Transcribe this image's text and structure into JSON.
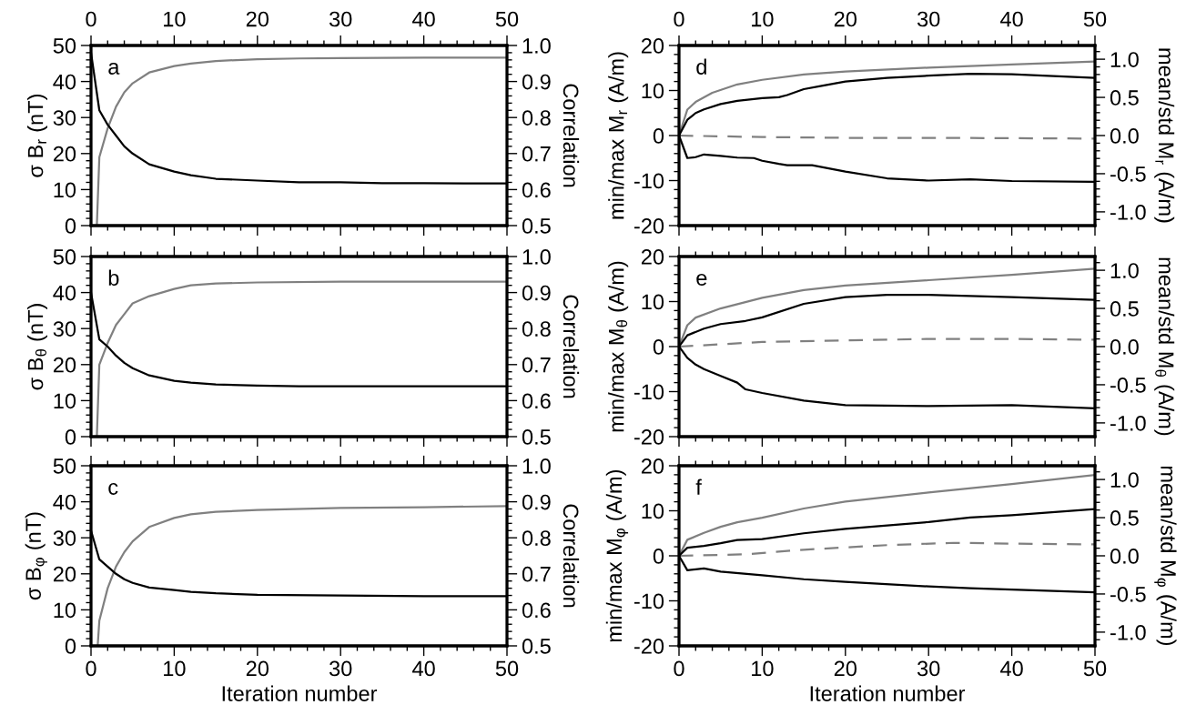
{
  "chart_data": [
    {
      "type": "line",
      "ylabel": "σ B$_{r}$ (nT)",
      "y2label": "Correlation",
      "annotations": [
        "a"
      ],
      "xlim": [
        0,
        50
      ],
      "xticks": [
        0,
        10,
        20,
        30,
        40,
        50
      ],
      "ylim": [
        0,
        50
      ],
      "yticks": [
        0,
        10,
        20,
        30,
        40,
        50
      ],
      "y2lim": [
        0.5,
        1.0
      ],
      "y2ticks": [
        {
          "value": 0.5,
          "label": "0.5"
        },
        {
          "value": 0.6,
          "label": "0.6"
        },
        {
          "value": 0.7,
          "label": "0.7"
        },
        {
          "value": 0.8,
          "label": "0.8"
        },
        {
          "value": 0.9,
          "label": "0.9"
        },
        {
          "value": 1.0,
          "label": "1.0"
        }
      ],
      "legend": false,
      "series": [
        {
          "color": "#000000",
          "x": [
            0,
            1,
            2,
            3,
            4,
            5,
            7,
            10,
            12,
            15,
            20,
            25,
            30,
            35,
            40,
            45,
            50
          ],
          "values": [
            48,
            32,
            28,
            25,
            22,
            20,
            17,
            15,
            14,
            13,
            12.5,
            12,
            12,
            11.8,
            11.8,
            11.7,
            11.7
          ]
        },
        {
          "color": "#808080",
          "axis": "y2",
          "x": [
            0.7,
            1,
            2,
            3,
            4,
            5,
            7,
            10,
            12,
            15,
            20,
            25,
            30,
            40,
            50
          ],
          "values": [
            0.5,
            0.69,
            0.77,
            0.83,
            0.87,
            0.895,
            0.925,
            0.943,
            0.95,
            0.957,
            0.962,
            0.964,
            0.965,
            0.966,
            0.966
          ]
        }
      ]
    },
    {
      "type": "line",
      "ylabel": "σ B$_{θ}$ (nT)",
      "y2label": "Correlation",
      "annotations": [
        "b"
      ],
      "xlim": [
        0,
        50
      ],
      "tick_labels": "y",
      "ylim": [
        0,
        50
      ],
      "yticks": [
        0,
        10,
        20,
        30,
        40,
        50
      ],
      "y2lim": [
        0.5,
        1.0
      ],
      "y2ticks": [
        {
          "value": 0.5,
          "label": "0.5"
        },
        {
          "value": 0.6,
          "label": "0.6"
        },
        {
          "value": 0.7,
          "label": "0.7"
        },
        {
          "value": 0.8,
          "label": "0.8"
        },
        {
          "value": 0.9,
          "label": "0.9"
        },
        {
          "value": 1.0,
          "label": "1.0"
        }
      ],
      "grid": false,
      "legend": false,
      "series": [
        {
          "color": "#000000",
          "x": [
            0,
            1,
            2,
            3,
            4,
            5,
            7,
            10,
            12,
            15,
            20,
            25,
            30,
            40,
            50
          ],
          "values": [
            40,
            27,
            25,
            22.5,
            20.5,
            19,
            17,
            15.5,
            15,
            14.5,
            14.2,
            14,
            14,
            14,
            14
          ]
        },
        {
          "color": "#808080",
          "axis": "y2",
          "x": [
            0.7,
            1,
            2,
            3,
            4,
            5,
            7,
            10,
            12,
            15,
            20,
            30,
            40,
            50
          ],
          "values": [
            0.5,
            0.7,
            0.76,
            0.81,
            0.84,
            0.87,
            0.89,
            0.91,
            0.92,
            0.925,
            0.928,
            0.93,
            0.93,
            0.93
          ]
        }
      ]
    },
    {
      "type": "line",
      "ylabel": "σ B$_{φ}$ (nT)",
      "y2label": "Correlation",
      "xlabel": "Iteration number",
      "annotations": [
        "c"
      ],
      "xlim": [
        0,
        50
      ],
      "xticks": [
        0,
        10,
        20,
        30,
        40,
        50
      ],
      "ylim": [
        0,
        50
      ],
      "yticks": [
        0,
        10,
        20,
        30,
        40,
        50
      ],
      "y2lim": [
        0.5,
        1.0
      ],
      "y2ticks": [
        {
          "value": 0.5,
          "label": "0.5"
        },
        {
          "value": 0.6,
          "label": "0.6"
        },
        {
          "value": 0.7,
          "label": "0.7"
        },
        {
          "value": 0.8,
          "label": "0.8"
        },
        {
          "value": 0.9,
          "label": "0.9"
        },
        {
          "value": 1.0,
          "label": "1.0"
        }
      ],
      "grid": false,
      "legend": false,
      "series": [
        {
          "color": "#000000",
          "x": [
            0,
            1,
            2,
            3,
            4,
            5,
            7,
            10,
            12,
            15,
            20,
            30,
            40,
            50
          ],
          "values": [
            32,
            24,
            22,
            20,
            18.5,
            17.5,
            16.2,
            15.5,
            15,
            14.6,
            14.2,
            14,
            13.8,
            13.8
          ]
        },
        {
          "color": "#808080",
          "axis": "y2",
          "x": [
            0.8,
            1,
            2,
            3,
            4,
            5,
            7,
            10,
            12,
            15,
            20,
            30,
            40,
            50
          ],
          "values": [
            0.5,
            0.57,
            0.66,
            0.72,
            0.76,
            0.79,
            0.83,
            0.855,
            0.865,
            0.872,
            0.877,
            0.883,
            0.885,
            0.888
          ]
        }
      ]
    },
    {
      "type": "line",
      "ylabel": "min/max M$_{r}$ (A/m)",
      "y2label": "mean/std M$_{r}$ (A/m)",
      "annotations": [
        "d"
      ],
      "xlim": [
        0,
        50
      ],
      "xticks": [
        0,
        10,
        20,
        30,
        40,
        50
      ],
      "ylim": [
        -20,
        20
      ],
      "yticks": [
        -20,
        -10,
        0,
        10,
        20
      ],
      "y2lim": [
        -1.18,
        1.18
      ],
      "y2ticks": [
        {
          "value": -1.0,
          "label": "-1.0"
        },
        {
          "value": -0.5,
          "label": "-0.5"
        },
        {
          "value": 0,
          "label": "0.0"
        },
        {
          "value": 0.5,
          "label": "0.5"
        },
        {
          "value": 1.0,
          "label": "1.0"
        }
      ],
      "grid": false,
      "legend": false,
      "series": [
        {
          "color": "#000000",
          "x": [
            0,
            1,
            2,
            3,
            5,
            7,
            10,
            12,
            13,
            15,
            17,
            20,
            25,
            30,
            35,
            40,
            45,
            50
          ],
          "values": [
            0,
            3.5,
            5,
            5.8,
            7,
            7.7,
            8.3,
            8.5,
            9,
            10.3,
            11,
            12,
            12.8,
            13.3,
            13.7,
            13.6,
            13.2,
            12.8
          ]
        },
        {
          "color": "#000000",
          "x": [
            0,
            1,
            2,
            3,
            5,
            7,
            9,
            10,
            12,
            13,
            16,
            20,
            25,
            30,
            35,
            40,
            50
          ],
          "values": [
            0,
            -5,
            -4.8,
            -4.2,
            -4.5,
            -4.9,
            -5,
            -5.6,
            -6.3,
            -6.6,
            -6.6,
            -8,
            -9.5,
            -10,
            -9.7,
            -10.1,
            -10.3
          ]
        },
        {
          "color": "#808080",
          "axis": "y2",
          "x": [
            0,
            1,
            2,
            4,
            7,
            10,
            15,
            20,
            30,
            40,
            50
          ],
          "values": [
            0,
            0.34,
            0.44,
            0.56,
            0.67,
            0.73,
            0.8,
            0.84,
            0.89,
            0.93,
            0.97
          ]
        },
        {
          "color": "#808080",
          "axis": "y2",
          "line_style": "dashed",
          "x": [
            0,
            10,
            20,
            30,
            50
          ],
          "values": [
            0,
            -0.02,
            -0.03,
            -0.03,
            -0.04
          ]
        }
      ]
    },
    {
      "type": "line",
      "ylabel": "min/max M$_{θ}$ (A/m)",
      "y2label": "mean/std M$_{θ}$ (A/m)",
      "annotations": [
        "e"
      ],
      "xlim": [
        0,
        50
      ],
      "tick_labels": "y",
      "ylim": [
        -20,
        20
      ],
      "yticks": [
        -20,
        -10,
        0,
        10,
        20
      ],
      "y2lim": [
        -1.18,
        1.18
      ],
      "y2ticks": [
        {
          "value": -1.0,
          "label": "-1.0"
        },
        {
          "value": -0.5,
          "label": "-0.5"
        },
        {
          "value": 0,
          "label": "0.0"
        },
        {
          "value": 0.5,
          "label": "0.5"
        },
        {
          "value": 1.0,
          "label": "1.0"
        }
      ],
      "grid": false,
      "legend": false,
      "series": [
        {
          "color": "#000000",
          "x": [
            0,
            1,
            3,
            5,
            8,
            10,
            15,
            20,
            25,
            30,
            40,
            50
          ],
          "values": [
            0,
            2.5,
            4,
            5,
            5.7,
            6.5,
            9.5,
            11,
            11.5,
            11.5,
            11,
            10.4
          ]
        },
        {
          "color": "#000000",
          "x": [
            0,
            1,
            2,
            3,
            5,
            7,
            8,
            10,
            15,
            20,
            30,
            40,
            50
          ],
          "values": [
            0,
            -2.5,
            -4,
            -5,
            -6.5,
            -8,
            -9.5,
            -10.3,
            -12,
            -13,
            -13.2,
            -13,
            -13.7
          ]
        },
        {
          "color": "#808080",
          "axis": "y2",
          "x": [
            0,
            1,
            2,
            5,
            10,
            15,
            20,
            30,
            40,
            50
          ],
          "values": [
            0,
            0.28,
            0.38,
            0.5,
            0.64,
            0.74,
            0.8,
            0.87,
            0.94,
            1.02
          ]
        },
        {
          "color": "#808080",
          "axis": "y2",
          "line_style": "dashed",
          "x": [
            0,
            10,
            20,
            30,
            40,
            50
          ],
          "values": [
            0,
            0.06,
            0.08,
            0.1,
            0.1,
            0.09
          ]
        }
      ]
    },
    {
      "type": "line",
      "ylabel": "min/max M$_{φ}$ (A/m)",
      "y2label": "mean/std M$_{φ}$ (A/m)",
      "xlabel": "Iteration number",
      "annotations": [
        "f"
      ],
      "xlim": [
        0,
        50
      ],
      "xticks": [
        0,
        10,
        20,
        30,
        40,
        50
      ],
      "ylim": [
        -20,
        20
      ],
      "yticks": [
        -20,
        -10,
        0,
        10,
        20
      ],
      "y2lim": [
        -1.18,
        1.18
      ],
      "y2ticks": [
        {
          "value": -1.0,
          "label": "-1.0"
        },
        {
          "value": -0.5,
          "label": "-0.5"
        },
        {
          "value": 0,
          "label": "0.0"
        },
        {
          "value": 0.5,
          "label": "0.5"
        },
        {
          "value": 1.0,
          "label": "1.0"
        }
      ],
      "grid": false,
      "legend": false,
      "series": [
        {
          "color": "#000000",
          "x": [
            0,
            1,
            3,
            5,
            7,
            10,
            15,
            20,
            30,
            35,
            40,
            50
          ],
          "values": [
            0,
            1.8,
            2.2,
            2.8,
            3.5,
            3.7,
            5,
            6,
            7.5,
            8.5,
            9,
            10.4
          ]
        },
        {
          "color": "#000000",
          "x": [
            0,
            1,
            3,
            5,
            10,
            15,
            20,
            30,
            35,
            40,
            50
          ],
          "values": [
            0,
            -3.2,
            -2.8,
            -3.5,
            -4.3,
            -5.2,
            -5.8,
            -6.8,
            -7.2,
            -7.5,
            -8.1
          ]
        },
        {
          "color": "#808080",
          "axis": "y2",
          "x": [
            0,
            1,
            3,
            5,
            7,
            10,
            15,
            20,
            30,
            40,
            50
          ],
          "values": [
            0,
            0.21,
            0.3,
            0.38,
            0.44,
            0.5,
            0.62,
            0.71,
            0.83,
            0.94,
            1.06
          ]
        },
        {
          "color": "#808080",
          "axis": "y2",
          "line_style": "dashed",
          "x": [
            0,
            8,
            15,
            25,
            33,
            40,
            50
          ],
          "values": [
            0,
            0.02,
            0.08,
            0.14,
            0.17,
            0.16,
            0.15
          ]
        }
      ]
    }
  ]
}
